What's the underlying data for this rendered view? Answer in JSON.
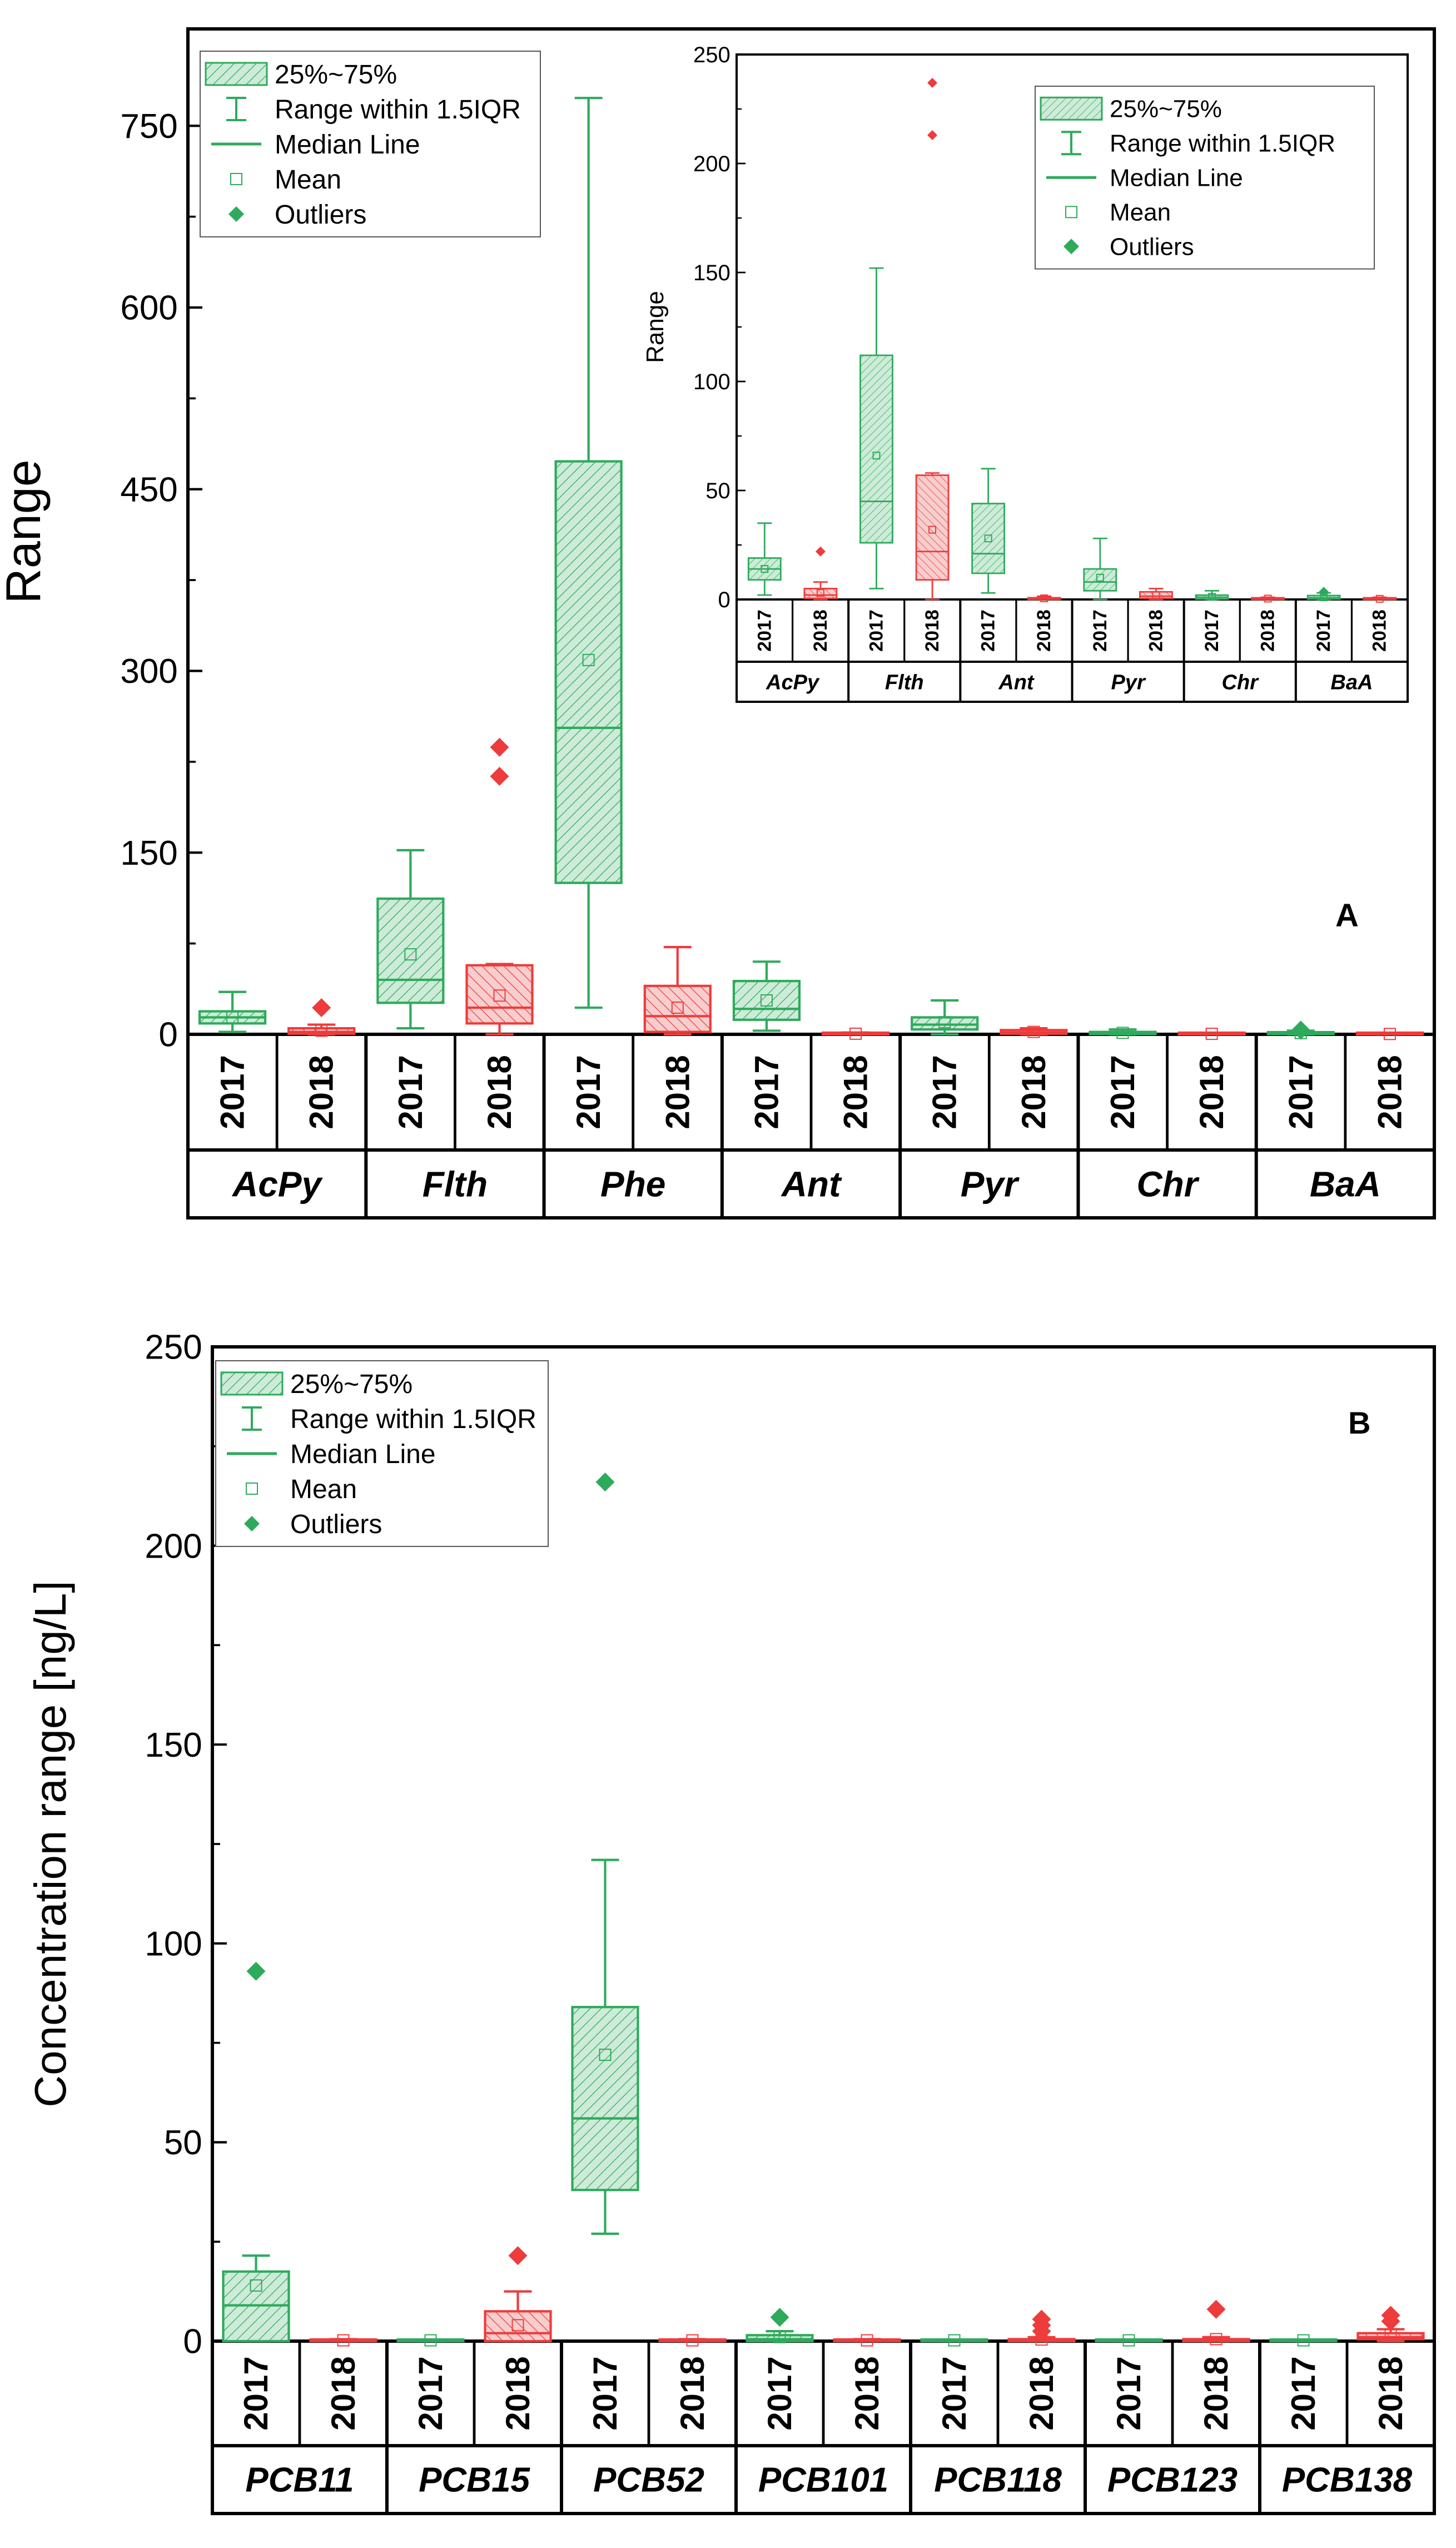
{
  "colors": {
    "green": "#2EAA5C",
    "green_fill": "#CDEBD8",
    "red": "#EE3B3B",
    "red_fill": "#F7CDCD",
    "axis": "#000000"
  },
  "legend_labels": [
    "25%~75%",
    "Range within 1.5IQR",
    "Median Line",
    "Mean",
    "Outliers"
  ],
  "chart_data": [
    {
      "id": "A",
      "type": "box",
      "panel_label": "A",
      "ylabel": "Range",
      "ylim": [
        0,
        830
      ],
      "yticks": [
        0,
        150,
        300,
        450,
        600,
        750
      ],
      "years": [
        "2017",
        "2018"
      ],
      "groups": [
        "AcPy",
        "Flth",
        "Phe",
        "Ant",
        "Pyr",
        "Chr",
        "BaA"
      ],
      "boxes": [
        {
          "group": "AcPy",
          "year": "2017",
          "whisker_low": 2,
          "q1": 9,
          "median": 14,
          "q3": 19,
          "whisker_high": 35,
          "mean": 14,
          "outliers": []
        },
        {
          "group": "AcPy",
          "year": "2018",
          "whisker_low": 0,
          "q1": 0.5,
          "median": 2,
          "q3": 5,
          "whisker_high": 8,
          "mean": 3,
          "outliers": [
            22
          ]
        },
        {
          "group": "Flth",
          "year": "2017",
          "whisker_low": 5,
          "q1": 26,
          "median": 45,
          "q3": 112,
          "whisker_high": 152,
          "mean": 66,
          "outliers": []
        },
        {
          "group": "Flth",
          "year": "2018",
          "whisker_low": 0,
          "q1": 9,
          "median": 22,
          "q3": 57,
          "whisker_high": 58,
          "mean": 32,
          "outliers": [
            213,
            237
          ]
        },
        {
          "group": "Phe",
          "year": "2017",
          "whisker_low": 22,
          "q1": 125,
          "median": 253,
          "q3": 473,
          "whisker_high": 773,
          "mean": 309,
          "outliers": []
        },
        {
          "group": "Phe",
          "year": "2018",
          "whisker_low": 0,
          "q1": 2,
          "median": 15,
          "q3": 40,
          "whisker_high": 72,
          "mean": 22,
          "outliers": []
        },
        {
          "group": "Ant",
          "year": "2017",
          "whisker_low": 3,
          "q1": 12,
          "median": 21,
          "q3": 44,
          "whisker_high": 60,
          "mean": 28,
          "outliers": []
        },
        {
          "group": "Ant",
          "year": "2018",
          "whisker_low": 0,
          "q1": 0,
          "median": 0.3,
          "q3": 0.8,
          "whisker_high": 1.5,
          "mean": 0.5,
          "outliers": []
        },
        {
          "group": "Pyr",
          "year": "2017",
          "whisker_low": 0,
          "q1": 4,
          "median": 8,
          "q3": 14,
          "whisker_high": 28,
          "mean": 10,
          "outliers": []
        },
        {
          "group": "Pyr",
          "year": "2018",
          "whisker_low": 0,
          "q1": 0.5,
          "median": 1.5,
          "q3": 3.5,
          "whisker_high": 5,
          "mean": 2,
          "outliers": []
        },
        {
          "group": "Chr",
          "year": "2017",
          "whisker_low": 0,
          "q1": 0.2,
          "median": 1,
          "q3": 2,
          "whisker_high": 4,
          "mean": 1.2,
          "outliers": []
        },
        {
          "group": "Chr",
          "year": "2018",
          "whisker_low": 0,
          "q1": 0,
          "median": 0.2,
          "q3": 0.6,
          "whisker_high": 1,
          "mean": 0.4,
          "outliers": []
        },
        {
          "group": "BaA",
          "year": "2017",
          "whisker_low": 0,
          "q1": 0.2,
          "median": 0.8,
          "q3": 1.8,
          "whisker_high": 3,
          "mean": 1,
          "outliers": [
            3.5
          ]
        },
        {
          "group": "BaA",
          "year": "2018",
          "whisker_low": 0,
          "q1": 0,
          "median": 0.2,
          "q3": 0.5,
          "whisker_high": 1,
          "mean": 0.3,
          "outliers": []
        }
      ]
    },
    {
      "id": "A_inset",
      "type": "box",
      "ylabel": "Range",
      "ylim": [
        0,
        250
      ],
      "yticks": [
        0,
        50,
        100,
        150,
        200,
        250
      ],
      "years": [
        "2017",
        "2018"
      ],
      "groups": [
        "AcPy",
        "Flth",
        "Ant",
        "Pyr",
        "Chr",
        "BaA"
      ],
      "boxes": [
        {
          "group": "AcPy",
          "year": "2017",
          "whisker_low": 2,
          "q1": 9,
          "median": 14,
          "q3": 19,
          "whisker_high": 35,
          "mean": 14,
          "outliers": []
        },
        {
          "group": "AcPy",
          "year": "2018",
          "whisker_low": 0,
          "q1": 0.5,
          "median": 2,
          "q3": 5,
          "whisker_high": 8,
          "mean": 3,
          "outliers": [
            22
          ]
        },
        {
          "group": "Flth",
          "year": "2017",
          "whisker_low": 5,
          "q1": 26,
          "median": 45,
          "q3": 112,
          "whisker_high": 152,
          "mean": 66,
          "outliers": []
        },
        {
          "group": "Flth",
          "year": "2018",
          "whisker_low": 0,
          "q1": 9,
          "median": 22,
          "q3": 57,
          "whisker_high": 58,
          "mean": 32,
          "outliers": [
            213,
            237
          ]
        },
        {
          "group": "Ant",
          "year": "2017",
          "whisker_low": 3,
          "q1": 12,
          "median": 21,
          "q3": 44,
          "whisker_high": 60,
          "mean": 28,
          "outliers": []
        },
        {
          "group": "Ant",
          "year": "2018",
          "whisker_low": 0,
          "q1": 0,
          "median": 0.3,
          "q3": 0.8,
          "whisker_high": 1.5,
          "mean": 0.5,
          "outliers": []
        },
        {
          "group": "Pyr",
          "year": "2017",
          "whisker_low": 0,
          "q1": 4,
          "median": 8,
          "q3": 14,
          "whisker_high": 28,
          "mean": 10,
          "outliers": []
        },
        {
          "group": "Pyr",
          "year": "2018",
          "whisker_low": 0,
          "q1": 0.5,
          "median": 1.5,
          "q3": 3.5,
          "whisker_high": 5,
          "mean": 2,
          "outliers": []
        },
        {
          "group": "Chr",
          "year": "2017",
          "whisker_low": 0,
          "q1": 0.2,
          "median": 1,
          "q3": 2,
          "whisker_high": 4,
          "mean": 1.2,
          "outliers": []
        },
        {
          "group": "Chr",
          "year": "2018",
          "whisker_low": 0,
          "q1": 0,
          "median": 0.2,
          "q3": 0.6,
          "whisker_high": 1,
          "mean": 0.4,
          "outliers": []
        },
        {
          "group": "BaA",
          "year": "2017",
          "whisker_low": 0,
          "q1": 0.2,
          "median": 0.8,
          "q3": 1.8,
          "whisker_high": 3,
          "mean": 1,
          "outliers": [
            3.5
          ]
        },
        {
          "group": "BaA",
          "year": "2018",
          "whisker_low": 0,
          "q1": 0,
          "median": 0.2,
          "q3": 0.5,
          "whisker_high": 1,
          "mean": 0.3,
          "outliers": []
        }
      ]
    },
    {
      "id": "B",
      "type": "box",
      "panel_label": "B",
      "ylabel": "Concentration range [ng/L]",
      "ylim": [
        0,
        250
      ],
      "yticks": [
        0,
        50,
        100,
        150,
        200,
        250
      ],
      "years": [
        "2017",
        "2018"
      ],
      "groups": [
        "PCB11",
        "PCB15",
        "PCB52",
        "PCB101",
        "PCB118",
        "PCB123",
        "PCB138"
      ],
      "boxes": [
        {
          "group": "PCB11",
          "year": "2017",
          "whisker_low": 0,
          "q1": 0,
          "median": 9,
          "q3": 17.5,
          "whisker_high": 21.5,
          "mean": 14,
          "outliers": [
            93
          ]
        },
        {
          "group": "PCB11",
          "year": "2018",
          "whisker_low": 0,
          "q1": 0,
          "median": 0.1,
          "q3": 0.3,
          "whisker_high": 0.5,
          "mean": 0.2,
          "outliers": []
        },
        {
          "group": "PCB15",
          "year": "2017",
          "whisker_low": 0,
          "q1": 0,
          "median": 0.1,
          "q3": 0.2,
          "whisker_high": 0.4,
          "mean": 0.2,
          "outliers": []
        },
        {
          "group": "PCB15",
          "year": "2018",
          "whisker_low": 0,
          "q1": 0,
          "median": 2,
          "q3": 7.5,
          "whisker_high": 12.5,
          "mean": 4,
          "outliers": [
            21.5
          ]
        },
        {
          "group": "PCB52",
          "year": "2017",
          "whisker_low": 27,
          "q1": 38,
          "median": 56,
          "q3": 84,
          "whisker_high": 121,
          "mean": 72,
          "outliers": [
            216
          ]
        },
        {
          "group": "PCB52",
          "year": "2018",
          "whisker_low": 0,
          "q1": 0,
          "median": 0.1,
          "q3": 0.3,
          "whisker_high": 0.5,
          "mean": 0.2,
          "outliers": []
        },
        {
          "group": "PCB101",
          "year": "2017",
          "whisker_low": 0,
          "q1": 0,
          "median": 0.5,
          "q3": 1.5,
          "whisker_high": 2.5,
          "mean": 1,
          "outliers": [
            6
          ]
        },
        {
          "group": "PCB101",
          "year": "2018",
          "whisker_low": 0,
          "q1": 0,
          "median": 0.1,
          "q3": 0.3,
          "whisker_high": 0.5,
          "mean": 0.2,
          "outliers": []
        },
        {
          "group": "PCB118",
          "year": "2017",
          "whisker_low": 0,
          "q1": 0,
          "median": 0.1,
          "q3": 0.2,
          "whisker_high": 0.4,
          "mean": 0.2,
          "outliers": []
        },
        {
          "group": "PCB118",
          "year": "2018",
          "whisker_low": 0,
          "q1": 0,
          "median": 0.2,
          "q3": 0.5,
          "whisker_high": 1,
          "mean": 0.4,
          "outliers": [
            2.5,
            4,
            5.5
          ]
        },
        {
          "group": "PCB123",
          "year": "2017",
          "whisker_low": 0,
          "q1": 0,
          "median": 0.1,
          "q3": 0.2,
          "whisker_high": 0.4,
          "mean": 0.2,
          "outliers": []
        },
        {
          "group": "PCB123",
          "year": "2018",
          "whisker_low": 0,
          "q1": 0,
          "median": 0.2,
          "q3": 0.5,
          "whisker_high": 1,
          "mean": 0.5,
          "outliers": [
            8
          ]
        },
        {
          "group": "PCB138",
          "year": "2017",
          "whisker_low": 0,
          "q1": 0,
          "median": 0.1,
          "q3": 0.2,
          "whisker_high": 0.4,
          "mean": 0.2,
          "outliers": []
        },
        {
          "group": "PCB138",
          "year": "2018",
          "whisker_low": 0,
          "q1": 0.5,
          "median": 1,
          "q3": 2,
          "whisker_high": 3,
          "mean": 1.5,
          "outliers": [
            5,
            6.5
          ]
        }
      ]
    }
  ]
}
